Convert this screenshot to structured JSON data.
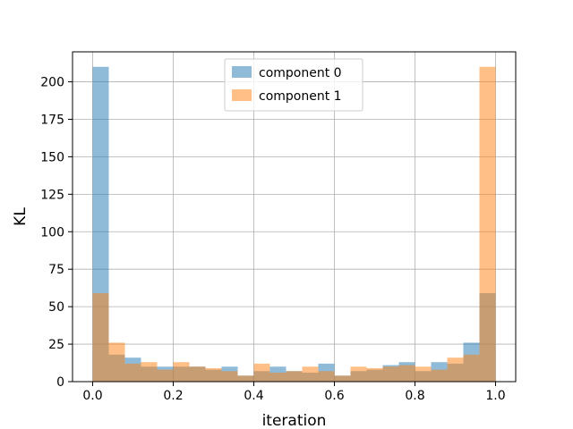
{
  "chart_data": {
    "type": "bar",
    "title": "",
    "xlabel": "iteration",
    "ylabel": "KL",
    "xlim": [
      -0.05,
      1.05
    ],
    "ylim": [
      0,
      220
    ],
    "xticks": [
      0.0,
      0.2,
      0.4,
      0.6,
      0.8,
      1.0
    ],
    "xtick_labels": [
      "0.0",
      "0.2",
      "0.4",
      "0.6",
      "0.8",
      "1.0"
    ],
    "yticks": [
      0,
      25,
      50,
      75,
      100,
      125,
      150,
      175,
      200
    ],
    "ytick_labels": [
      "0",
      "25",
      "50",
      "75",
      "100",
      "125",
      "150",
      "175",
      "200"
    ],
    "grid": true,
    "legend_position": "top-center",
    "bin_edges": [
      0.0,
      0.04,
      0.08,
      0.12,
      0.16,
      0.2,
      0.24,
      0.28,
      0.32,
      0.36,
      0.4,
      0.44,
      0.48,
      0.52,
      0.56,
      0.6,
      0.64,
      0.68,
      0.72,
      0.76,
      0.8,
      0.84,
      0.88,
      0.92,
      0.96,
      1.0
    ],
    "series": [
      {
        "name": "component 0",
        "color": "#1f77b4",
        "values": [
          210,
          18,
          16,
          10,
          10,
          10,
          10,
          8,
          10,
          4,
          7,
          10,
          7,
          6,
          12,
          4,
          7,
          8,
          11,
          13,
          7,
          13,
          12,
          26,
          59
        ]
      },
      {
        "name": "component 1",
        "color": "#ff7f0e",
        "values": [
          59,
          26,
          12,
          13,
          8,
          13,
          10,
          9,
          7,
          4,
          12,
          6,
          7,
          10,
          7,
          4,
          10,
          9,
          10,
          11,
          10,
          8,
          16,
          18,
          210
        ]
      }
    ]
  }
}
